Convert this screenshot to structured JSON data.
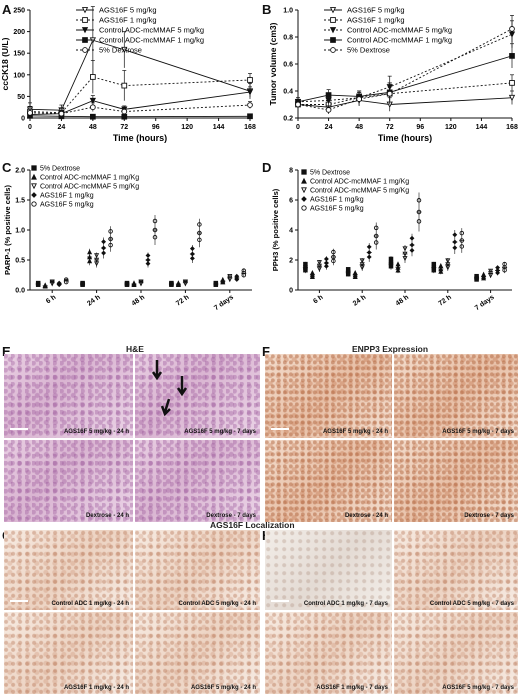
{
  "panels": {
    "A": "A",
    "B": "B",
    "C": "C",
    "D": "D",
    "E": "E",
    "F": "F",
    "G": "G",
    "H": "H"
  },
  "image_headings": {
    "he": "H&E",
    "enpp3": "ENPP3 Expression",
    "localization": "AGS16F Localization"
  },
  "image_captions": {
    "E": [
      "AGS16F 5 mg/kg - 24 h",
      "AGS16F 5 mg/kg - 7 days",
      "Dextrose - 24 h",
      "Dextrose - 7 days"
    ],
    "F": [
      "AGS16F 5 mg/kg - 24 h",
      "AGS16F 5 mg/kg - 7 days",
      "Dextrose - 24 h",
      "Dextrose - 7 days"
    ],
    "G": [
      "Control ADC 1 mg/kg - 24 h",
      "Control ADC 5 mg/kg - 24 h",
      "AGS16F 1 mg/kg - 24 h",
      "AGS16F 5 mg/kg - 24 h"
    ],
    "H": [
      "Control ADC 1 mg/kg - 7 days",
      "Control ADC 5 mg/kg - 7 days",
      "AGS16F 1 mg/kg - 7 days",
      "AGS16F 5 mg/kg - 7 days"
    ]
  },
  "chart_data": [
    {
      "panel": "A",
      "type": "line",
      "xlabel": "Time (hours)",
      "ylabel": "ccCK18 (U/L)",
      "x": [
        0,
        24,
        48,
        72,
        168
      ],
      "xticks": [
        "0",
        "24",
        "48",
        "72",
        "96",
        "120",
        "144",
        "168"
      ],
      "xlim": [
        0,
        168
      ],
      "yticks": [
        "0",
        "50",
        "100",
        "150",
        "200",
        "250"
      ],
      "ylim": [
        0,
        250
      ],
      "series": [
        {
          "name": "AGS16F 5 mg/kg",
          "values": [
            20,
            18,
            180,
            158,
            62
          ],
          "err": [
            15,
            12,
            78,
            42,
            18
          ],
          "marker": "tri-down-open",
          "dash": false
        },
        {
          "name": "AGS16F 1 mg/kg",
          "values": [
            15,
            12,
            95,
            75,
            88
          ],
          "err": [
            12,
            10,
            38,
            35,
            15
          ],
          "marker": "square-open",
          "dash": true
        },
        {
          "name": "Control ADC-mcMMAF 5 mg/kg",
          "values": [
            8,
            10,
            40,
            20,
            60
          ],
          "err": [
            5,
            6,
            12,
            8,
            12
          ],
          "marker": "tri-down-filled",
          "dash": false
        },
        {
          "name": "Control ADC-mcMMAF 1 mg/kg",
          "values": [
            5,
            4,
            3,
            3,
            4
          ],
          "err": [
            3,
            3,
            2,
            2,
            2
          ],
          "marker": "square-filled",
          "dash": false
        },
        {
          "name": "5% Dextrose",
          "values": [
            12,
            10,
            25,
            15,
            30
          ],
          "err": [
            8,
            6,
            10,
            6,
            8
          ],
          "marker": "circle-open",
          "dash": true
        }
      ]
    },
    {
      "panel": "B",
      "type": "line",
      "xlabel": "Time (hours)",
      "ylabel": "Tumor volume (cm3)",
      "x": [
        0,
        24,
        48,
        72,
        168
      ],
      "xticks": [
        "0",
        "24",
        "48",
        "72",
        "96",
        "120",
        "144",
        "168"
      ],
      "xlim": [
        0,
        168
      ],
      "yticks": [
        "0.2",
        "0.4",
        "0.6",
        "0.8",
        "1.0"
      ],
      "ylim": [
        0.2,
        1.0
      ],
      "series": [
        {
          "name": "AGS16F 5 mg/kg",
          "values": [
            0.3,
            0.28,
            0.33,
            0.3,
            0.35
          ],
          "err": [
            0.03,
            0.03,
            0.04,
            0.05,
            0.05
          ],
          "marker": "tri-down-open",
          "dash": false
        },
        {
          "name": "AGS16F 1 mg/kg",
          "values": [
            0.3,
            0.3,
            0.35,
            0.38,
            0.46
          ],
          "err": [
            0.03,
            0.03,
            0.04,
            0.05,
            0.06
          ],
          "marker": "square-open",
          "dash": true
        },
        {
          "name": "Control ADC-mcMMAF 5 mg/kg",
          "values": [
            0.32,
            0.33,
            0.35,
            0.43,
            0.82
          ],
          "err": [
            0.03,
            0.04,
            0.05,
            0.08,
            0.1
          ],
          "marker": "tri-down-filled",
          "dash": true
        },
        {
          "name": "Control ADC-mcMMAF 1 mg/kg",
          "values": [
            0.32,
            0.37,
            0.36,
            0.39,
            0.66
          ],
          "err": [
            0.03,
            0.04,
            0.04,
            0.07,
            0.09
          ],
          "marker": "square-filled",
          "dash": false
        },
        {
          "name": "5% Dextrose",
          "values": [
            0.3,
            0.26,
            0.34,
            0.38,
            0.86
          ],
          "err": [
            0.03,
            0.03,
            0.05,
            0.08,
            0.1
          ],
          "marker": "circle-open",
          "dash": true
        }
      ]
    },
    {
      "panel": "C",
      "type": "scatter",
      "ylabel": "PARP-1 (% positive cells)",
      "categories": [
        "6 h",
        "24 h",
        "48 h",
        "72 h",
        "7 days"
      ],
      "yticks": [
        "0.0",
        "0.5",
        "1.0",
        "1.5",
        "2.0"
      ],
      "ylim": [
        0,
        2.0
      ],
      "series": [
        {
          "name": "5% Dextrose",
          "values": [
            0.1,
            0.1,
            0.1,
            0.1,
            0.1
          ],
          "marker": "square-filled"
        },
        {
          "name": "Control ADC-mcMMAF 1 mg/Kg",
          "values": [
            0.07,
            0.55,
            0.1,
            0.1,
            0.15
          ],
          "marker": "tri-up-filled"
        },
        {
          "name": "Control ADC-mcMMAF 5 mg/Kg",
          "values": [
            0.12,
            0.5,
            0.12,
            0.12,
            0.2
          ],
          "marker": "tri-down-open"
        },
        {
          "name": "AGS16F 1 mg/kg",
          "values": [
            0.1,
            0.7,
            0.5,
            0.6,
            0.2
          ],
          "marker": "diamond-filled"
        },
        {
          "name": "AGS16F 5 mg/kg",
          "values": [
            0.15,
            0.85,
            1.0,
            0.95,
            0.28
          ],
          "marker": "circle-open"
        }
      ]
    },
    {
      "panel": "D",
      "type": "scatter",
      "ylabel": "PPH3 (% positive cells)",
      "categories": [
        "6 h",
        "24 h",
        "48 h",
        "72 h",
        "7 days"
      ],
      "yticks": [
        "0",
        "2",
        "4",
        "6",
        "8"
      ],
      "ylim": [
        0,
        8
      ],
      "series": [
        {
          "name": "5% Dextrose",
          "values": [
            1.5,
            1.2,
            1.8,
            1.5,
            0.8
          ],
          "marker": "square-filled"
        },
        {
          "name": "Control ADC-mcMMAF 1 mg/Kg",
          "values": [
            1.0,
            1.0,
            1.5,
            1.4,
            0.9
          ],
          "marker": "tri-up-filled"
        },
        {
          "name": "Control ADC-mcMMAF 5 mg/Kg",
          "values": [
            1.6,
            1.7,
            2.4,
            1.7,
            1.1
          ],
          "marker": "tri-down-open"
        },
        {
          "name": "AGS16F 1 mg/kg",
          "values": [
            1.8,
            2.5,
            3.0,
            3.2,
            1.3
          ],
          "marker": "diamond-filled"
        },
        {
          "name": "AGS16F 5 mg/kg",
          "values": [
            2.2,
            3.6,
            5.2,
            3.3,
            1.5
          ],
          "marker": "circle-open"
        }
      ]
    }
  ]
}
